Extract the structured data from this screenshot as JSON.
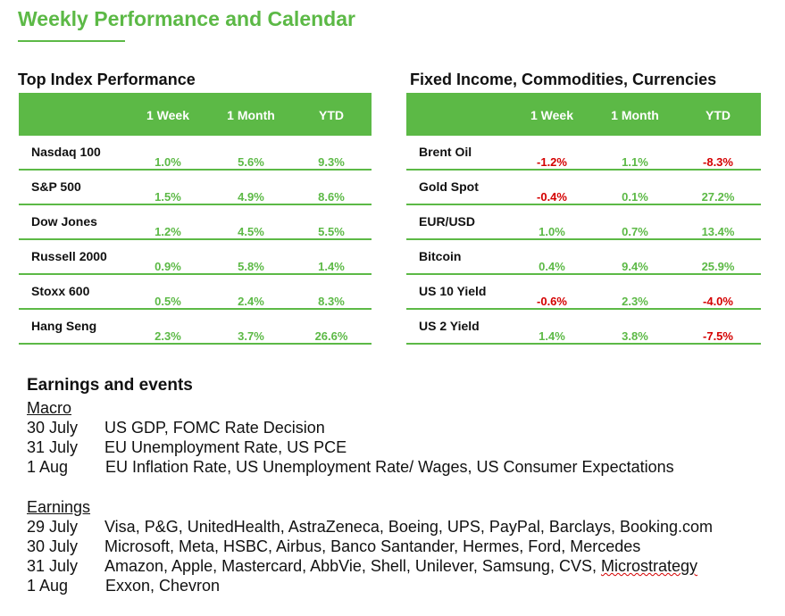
{
  "title": "Weekly Performance and Calendar",
  "left_table": {
    "heading": "Top Index Performance",
    "columns": [
      "1 Week",
      "1 Month",
      "YTD"
    ],
    "rows": [
      {
        "name": "Nasdaq 100",
        "week": "1.0%",
        "month": "5.6%",
        "ytd": "9.3%"
      },
      {
        "name": "S&P 500",
        "week": "1.5%",
        "month": "4.9%",
        "ytd": "8.6%"
      },
      {
        "name": "Dow Jones",
        "week": "1.2%",
        "month": "4.5%",
        "ytd": "5.5%"
      },
      {
        "name": "Russell 2000",
        "week": "0.9%",
        "month": "5.8%",
        "ytd": "1.4%"
      },
      {
        "name": "Stoxx 600",
        "week": "0.5%",
        "month": "2.4%",
        "ytd": "8.3%"
      },
      {
        "name": "Hang Seng",
        "week": "2.3%",
        "month": "3.7%",
        "ytd": "26.6%"
      }
    ]
  },
  "right_table": {
    "heading": "Fixed Income, Commodities, Currencies",
    "columns": [
      "1 Week",
      "1 Month",
      "YTD"
    ],
    "rows": [
      {
        "name": "Brent Oil",
        "week": "-1.2%",
        "month": "1.1%",
        "ytd": "-8.3%"
      },
      {
        "name": "Gold Spot",
        "week": "-0.4%",
        "month": "0.1%",
        "ytd": "27.2%"
      },
      {
        "name": "EUR/USD",
        "week": "1.0%",
        "month": "0.7%",
        "ytd": "13.4%"
      },
      {
        "name": "Bitcoin",
        "week": "0.4%",
        "month": "9.4%",
        "ytd": "25.9%"
      },
      {
        "name": "US 10 Yield",
        "week": "-0.6%",
        "month": "2.3%",
        "ytd": "-4.0%"
      },
      {
        "name": "US 2 Yield",
        "week": "1.4%",
        "month": "3.8%",
        "ytd": "-7.5%"
      }
    ]
  },
  "colors": {
    "accent": "#5cb946",
    "positive": "#5cb946",
    "negative": "#d40000"
  },
  "events": {
    "heading": "Earnings and events",
    "macro_label": "Macro",
    "macro": [
      {
        "date": "30  July",
        "text": "US GDP, FOMC Rate Decision"
      },
      {
        "date": "31  July",
        "text": "EU Unemployment Rate, US PCE"
      },
      {
        "date": "1 Aug",
        "text": "EU Inflation Rate, US Unemployment Rate/ Wages, US Consumer Expectations"
      }
    ],
    "earnings_label": "Earnings",
    "earnings": [
      {
        "date": "29 July",
        "text": "Visa, P&G, UnitedHealth, AstraZeneca, Boeing, UPS, PayPal, Barclays, Booking.com"
      },
      {
        "date": "30 July",
        "text": "Microsoft, Meta, HSBC, Airbus, Banco Santander, Hermes, Ford, Mercedes"
      },
      {
        "date": "31 July",
        "text": "Amazon, Apple, Mastercard, AbbVie, Shell, Unilever, Samsung, CVS, ",
        "text_flagged": "Microstrategy"
      },
      {
        "date": "1 Aug",
        "text": "Exxon, Chevron"
      }
    ]
  }
}
